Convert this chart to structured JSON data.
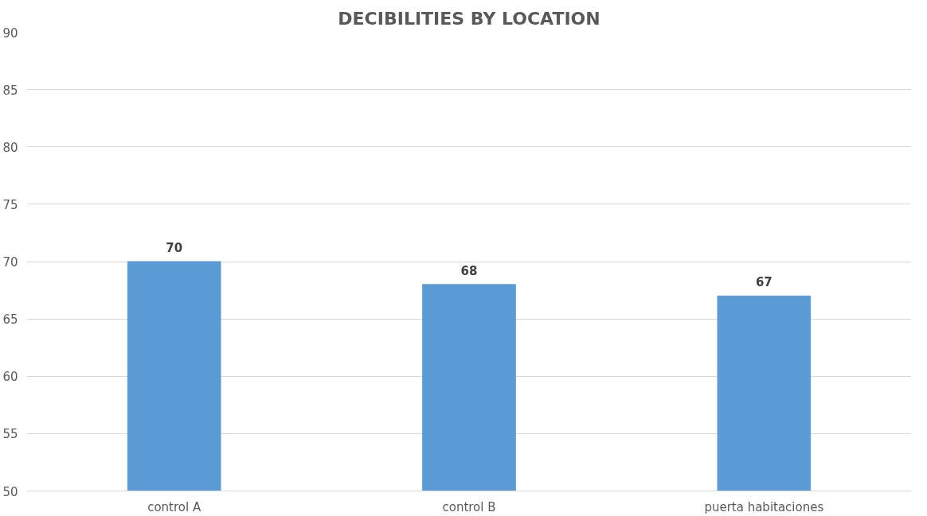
{
  "chart_data": {
    "type": "bar",
    "title": "DECIBILITIES BY LOCATION",
    "categories": [
      "control A",
      "control B",
      "puerta habitaciones"
    ],
    "values": [
      70,
      68,
      67
    ],
    "color": "#5b9bd5",
    "ylim": [
      50,
      90
    ],
    "yticks": [
      50,
      55,
      60,
      65,
      70,
      75,
      80,
      85,
      90
    ],
    "grid": "y",
    "data_labels": true
  }
}
